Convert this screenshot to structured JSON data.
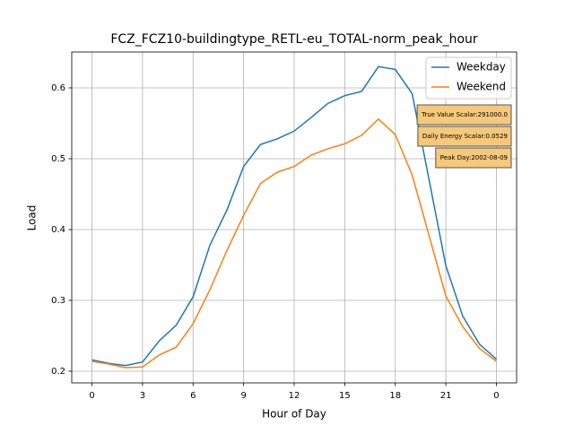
{
  "chart_data": {
    "type": "line",
    "title": "FCZ_FCZ10-buildingtype_RETL-eu_TOTAL-norm_peak_hour",
    "x_label": "Hour of Day",
    "y_label": "Load",
    "x": [
      0,
      1,
      2,
      3,
      4,
      5,
      6,
      7,
      8,
      9,
      10,
      11,
      12,
      13,
      14,
      15,
      16,
      17,
      18,
      19,
      20,
      21,
      22,
      23,
      24
    ],
    "series": [
      {
        "name": "Weekday",
        "color": "#1f77b4",
        "values": [
          0.216,
          0.211,
          0.208,
          0.213,
          0.243,
          0.265,
          0.305,
          0.378,
          0.427,
          0.489,
          0.52,
          0.528,
          0.539,
          0.558,
          0.578,
          0.589,
          0.595,
          0.63,
          0.626,
          0.592,
          0.471,
          0.349,
          0.278,
          0.238,
          0.217
        ]
      },
      {
        "name": "Weekend",
        "color": "#ff7f0e",
        "values": [
          0.214,
          0.21,
          0.205,
          0.206,
          0.223,
          0.234,
          0.267,
          0.315,
          0.37,
          0.42,
          0.465,
          0.481,
          0.489,
          0.505,
          0.514,
          0.521,
          0.533,
          0.556,
          0.534,
          0.477,
          0.392,
          0.306,
          0.263,
          0.232,
          0.214
        ]
      }
    ],
    "xlim": [
      -1.2,
      25.2
    ],
    "xticks": [
      0,
      3,
      6,
      9,
      12,
      15,
      18,
      21,
      {
        "value": 24,
        "label": "0"
      }
    ],
    "ylim": [
      0.1835,
      0.6506
    ],
    "yticks": [
      0.2,
      0.3,
      0.4,
      0.5,
      0.6
    ],
    "grid": true,
    "legend": "upper right",
    "annotations": [
      "True Value Scalar:291000.0",
      "Daily Energy Scalar:0.0529",
      "Peak Day:2002-08-09"
    ],
    "annotation_color": "#f5c87a"
  }
}
